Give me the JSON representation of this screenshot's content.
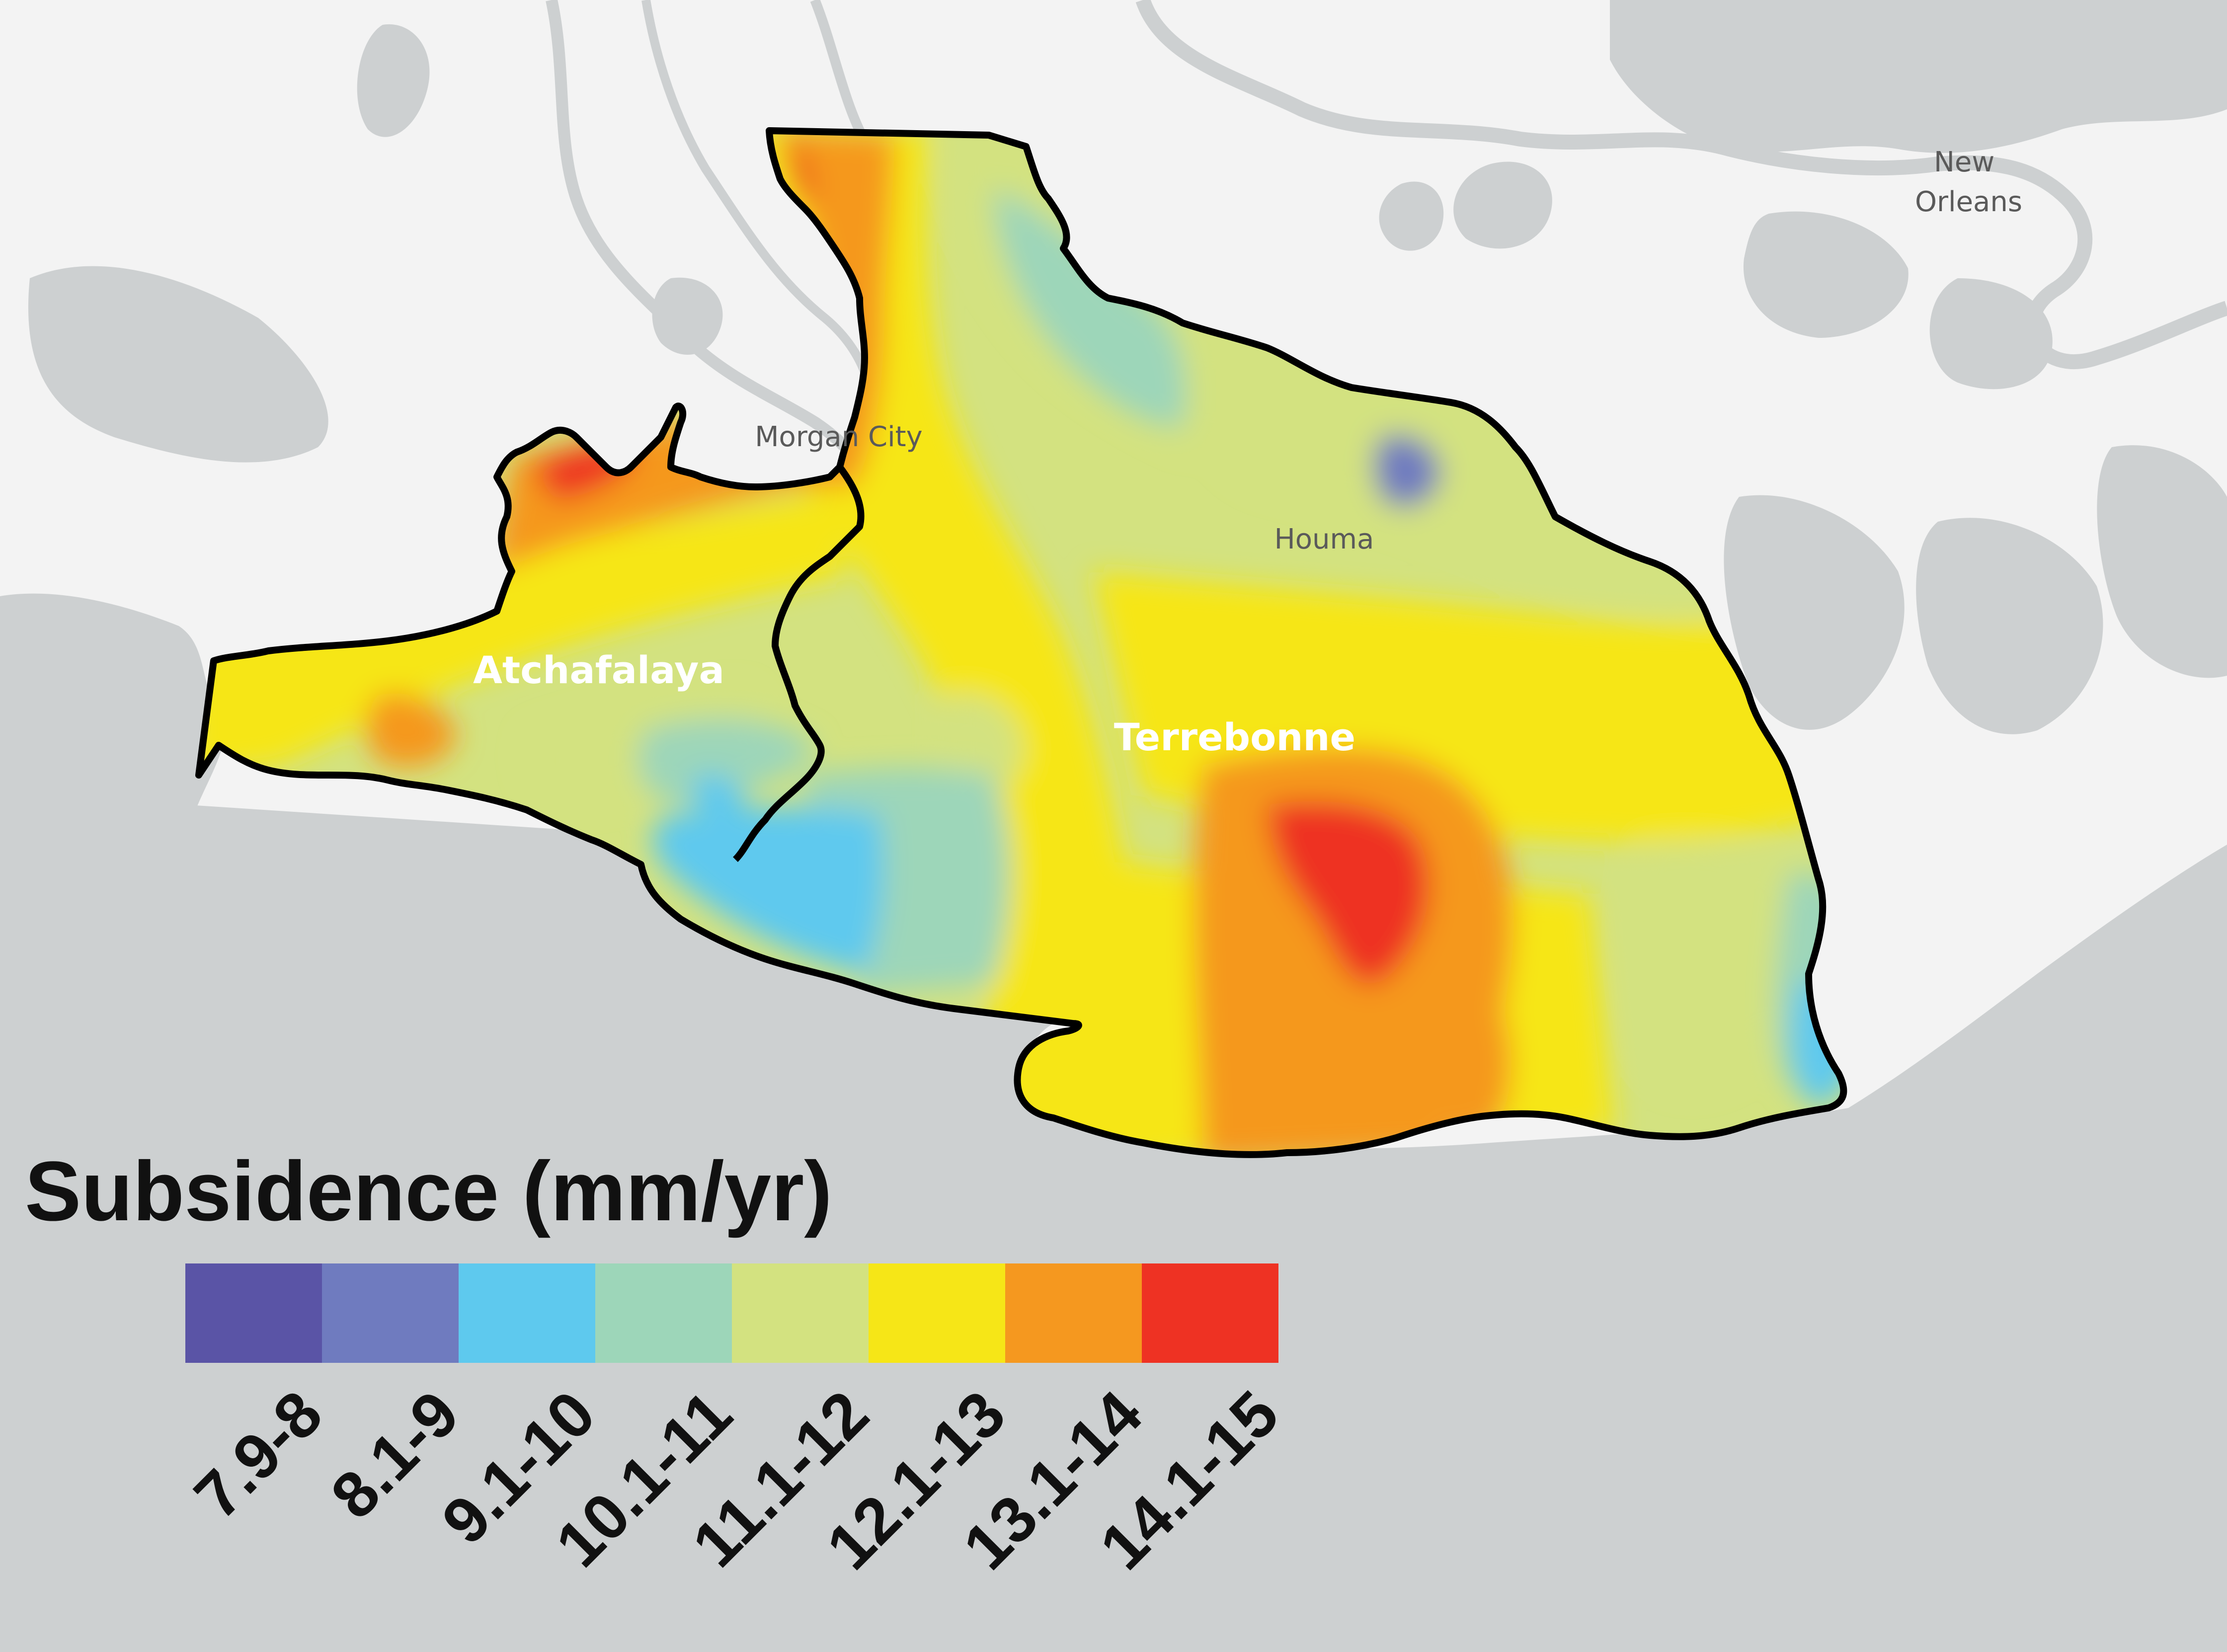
{
  "map": {
    "places": [
      {
        "key": "new-orleans",
        "lines": [
          "New",
          "Orleans"
        ]
      },
      {
        "key": "morgan-city",
        "lines": [
          "Morgan City"
        ]
      },
      {
        "key": "houma",
        "lines": [
          "Houma"
        ]
      }
    ],
    "basins": [
      {
        "key": "atchafalaya",
        "label": "Atchafalaya"
      },
      {
        "key": "terrebonne",
        "label": "Terrebonne"
      }
    ]
  },
  "legend": {
    "title": "Subsidence (mm/yr)",
    "classes": [
      {
        "label": "7.9-8",
        "color": "#5a54a6"
      },
      {
        "label": "8.1-9",
        "color": "#6f7bbf"
      },
      {
        "label": "9.1-10",
        "color": "#5ec9ee"
      },
      {
        "label": "10.1-11",
        "color": "#9dd6b9"
      },
      {
        "label": "11.1-12",
        "color": "#d3e280"
      },
      {
        "label": "12.1-13",
        "color": "#f6e617"
      },
      {
        "label": "13.1-14",
        "color": "#f5981f"
      },
      {
        "label": "14.1-15",
        "color": "#ee3223"
      }
    ]
  },
  "colors": {
    "land": "#f3f3f3",
    "water": "#cdd0d1",
    "outline": "#000000"
  }
}
